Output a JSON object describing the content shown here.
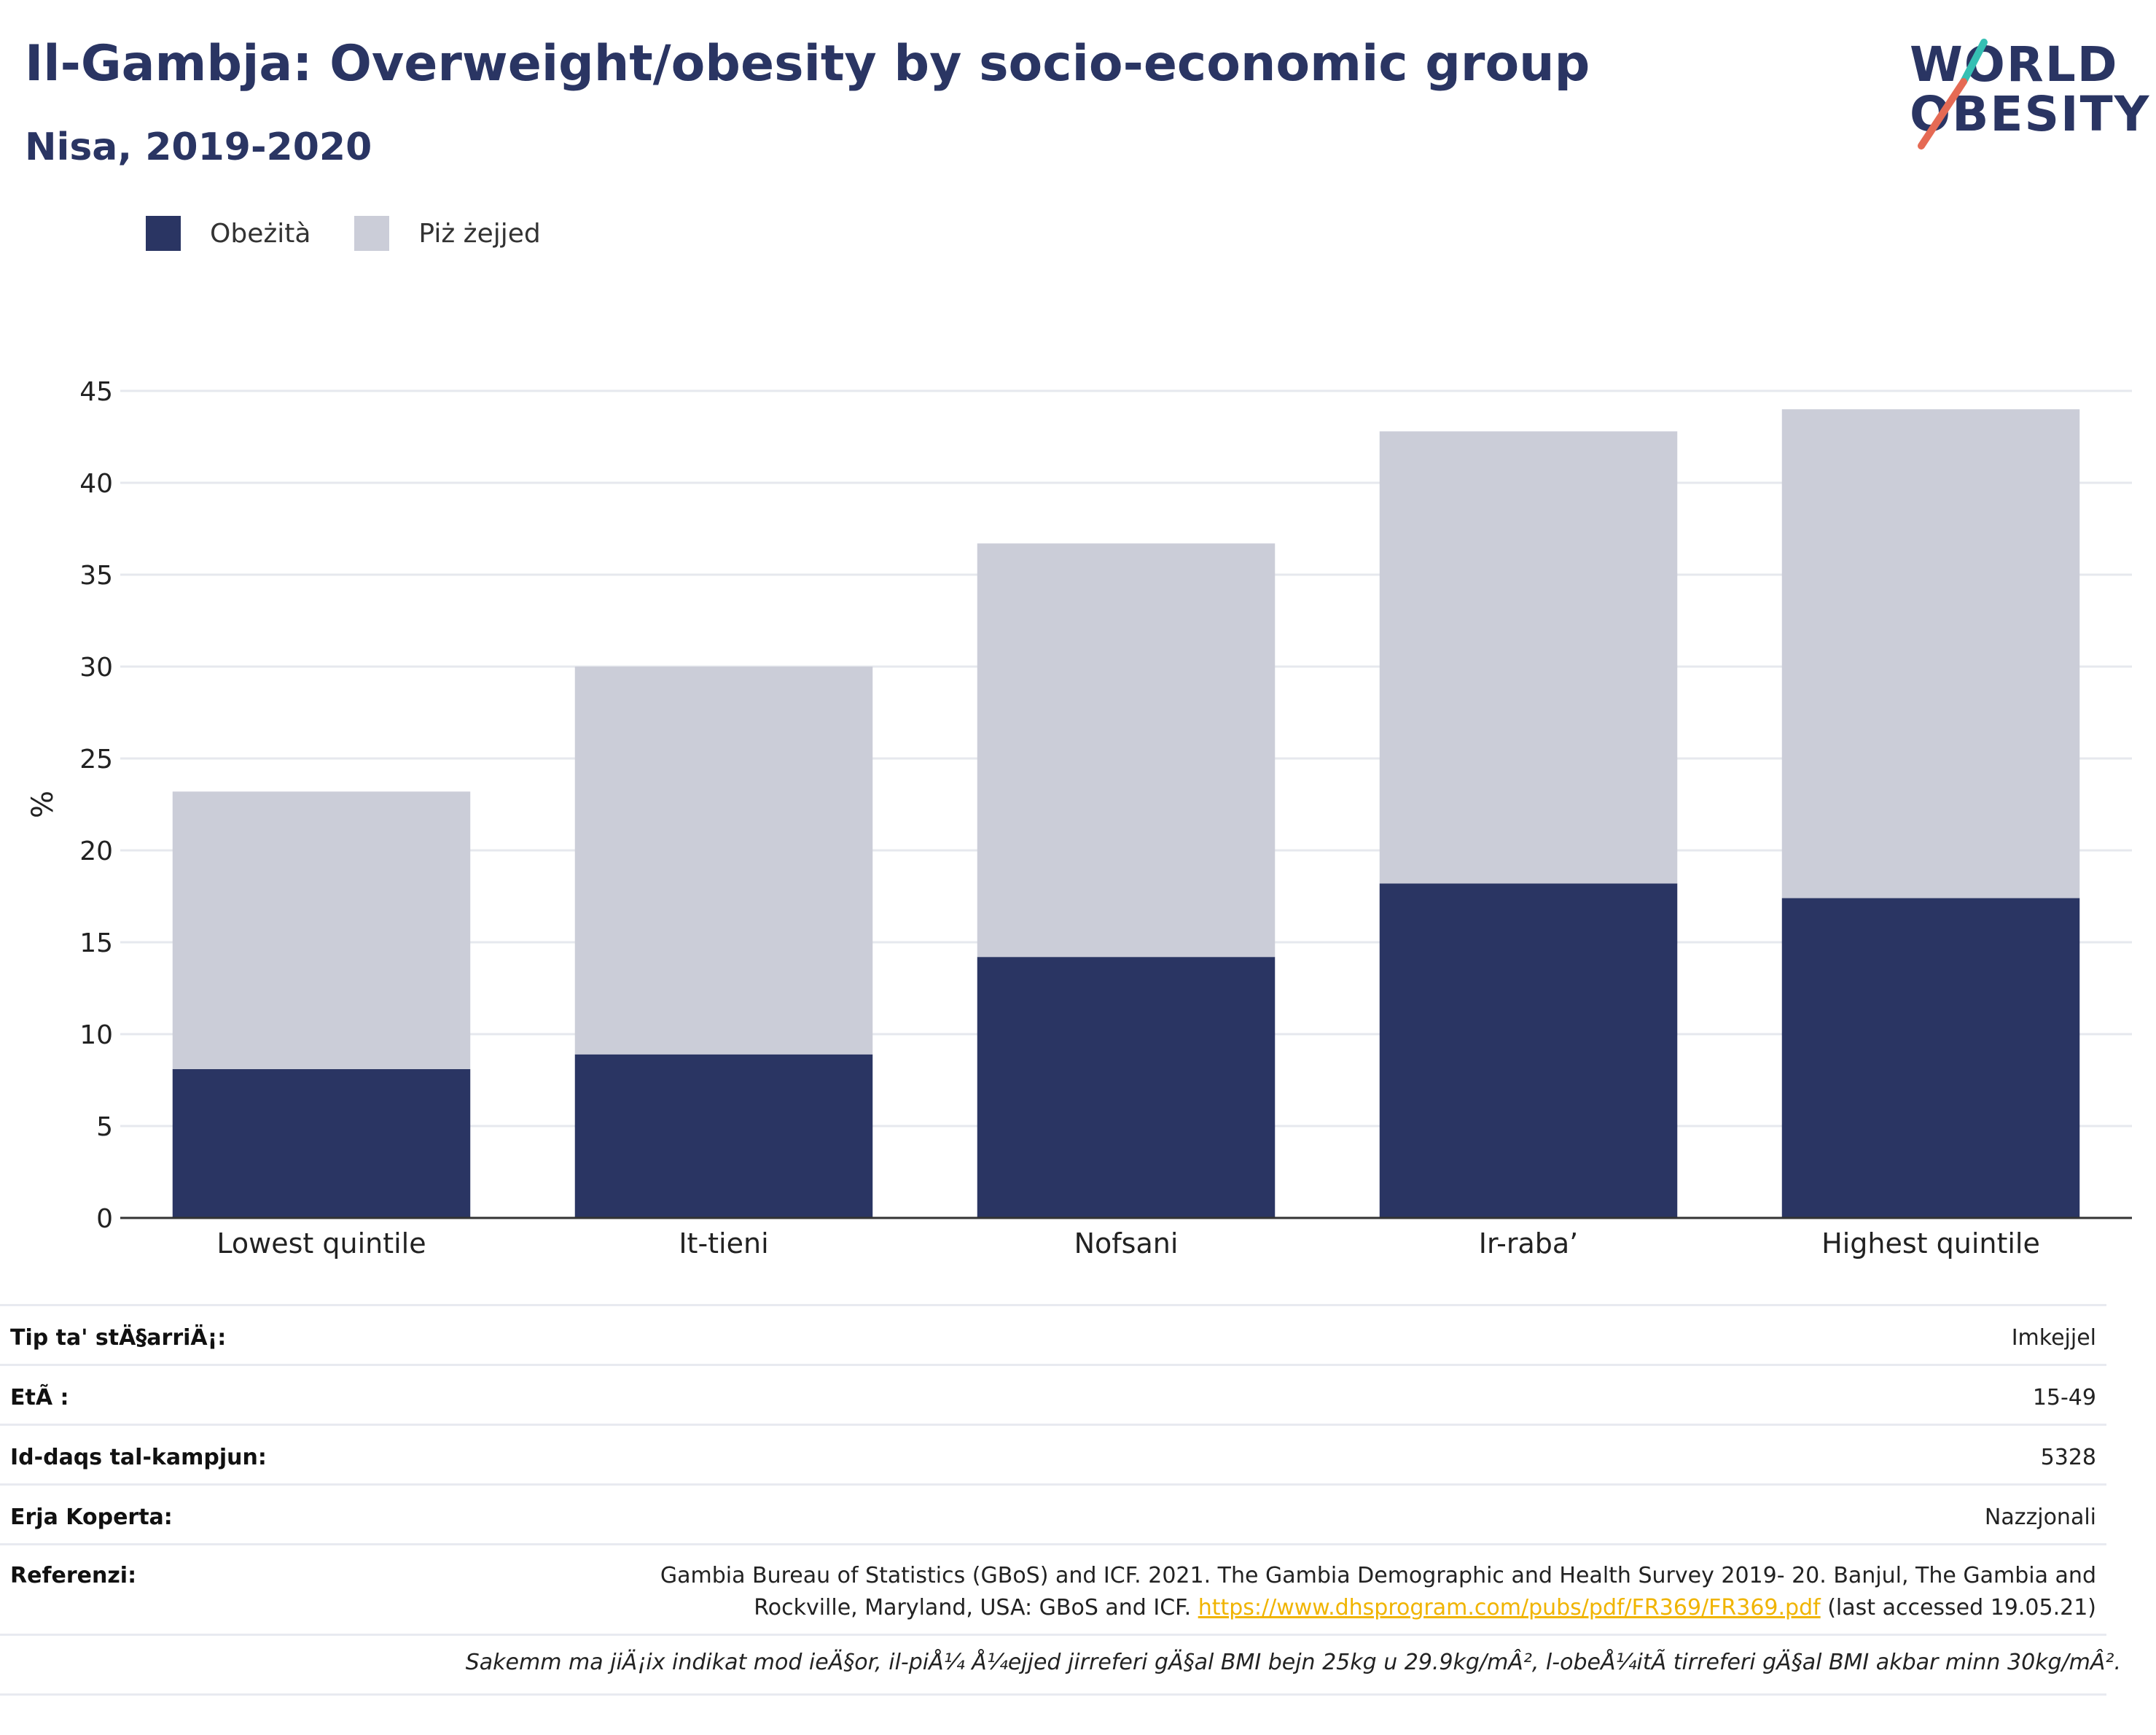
{
  "header": {
    "title": "Il-Gambja: Overweight/obesity by socio-economic group",
    "subtitle": "Nisa, 2019-2020"
  },
  "logo": {
    "line1": "WORLD",
    "line2": "OBESITY"
  },
  "colors": {
    "obese": "#2a3563",
    "overweight": "#cbcdd8",
    "accent_teal": "#36bfb3",
    "accent_red": "#e56a54"
  },
  "legend": [
    {
      "label": "Obeżità",
      "color": "#2a3563"
    },
    {
      "label": "Piż żejjed",
      "color": "#cbcdd8"
    }
  ],
  "chart_data": {
    "type": "bar",
    "stacked": true,
    "categories": [
      "Lowest quintile",
      "It-tieni",
      "Nofsani",
      "Ir-raba’",
      "Highest quintile"
    ],
    "series": [
      {
        "name": "Obeżità",
        "values": [
          8.1,
          8.9,
          14.2,
          18.2,
          17.4
        ]
      },
      {
        "name": "Piż żejjed",
        "values": [
          15.1,
          21.1,
          22.5,
          24.6,
          26.6
        ]
      }
    ],
    "ylabel": "%",
    "ylim": [
      0,
      45
    ],
    "yticks": [
      0,
      5,
      10,
      15,
      20,
      25,
      30,
      35,
      40,
      45
    ],
    "grid": true,
    "legend_position": "top-left"
  },
  "meta": {
    "rows": [
      {
        "key": "Tip ta' stÄ§arriÄ¡:",
        "value": "Imkejjel"
      },
      {
        "key": "EtÃ :",
        "value": "15-49"
      },
      {
        "key": "Id-daqs tal-kampjun:",
        "value": "5328"
      },
      {
        "key": "Erja Koperta:",
        "value": "Nazzjonali"
      }
    ],
    "reference_key": "Referenzi:",
    "reference_line1": "Gambia Bureau of Statistics (GBoS) and ICF. 2021. The Gambia Demographic and Health Survey 2019- 20. Banjul, The Gambia and",
    "reference_line2_pre": "Rockville, Maryland, USA: GBoS and ICF. ",
    "reference_link": "https://www.dhsprogram.com/pubs/pdf/FR369/FR369.pdf",
    "reference_line2_post": " (last accessed 19.05.21)",
    "note": "Sakemm ma jiÄ¡ix indikat mod ieÄ§or, il-piÅ¼ Å¼ejjed jirreferi gÄ§al BMI bejn 25kg u 29.9kg/mÂ², l-obeÅ¼itÃ  tirreferi gÄ§al BMI akbar minn 30kg/mÂ²."
  }
}
